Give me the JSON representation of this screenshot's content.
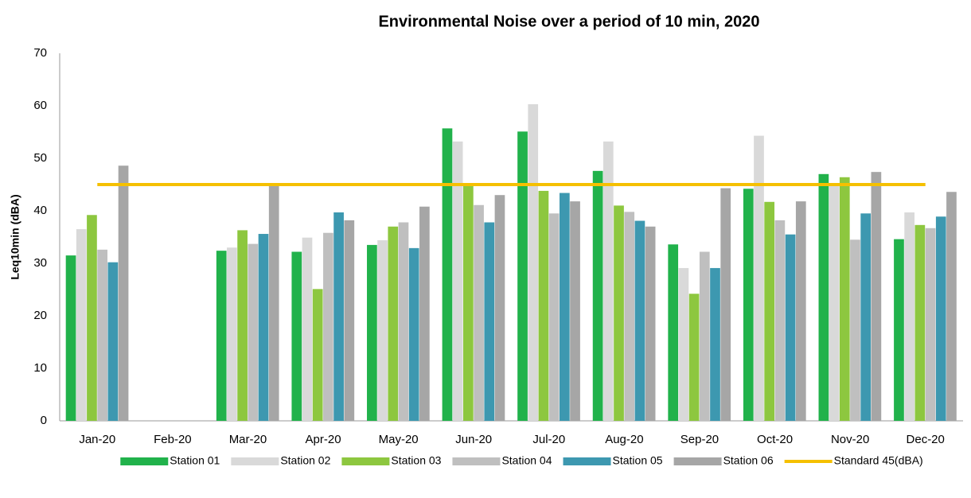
{
  "chart_data": {
    "type": "bar",
    "title": "Environmental Noise over a period of 10 min, 2020",
    "y_label": "Leq10min (dBA)",
    "categories": [
      "Jan-20",
      "Feb-20",
      "Mar-20",
      "Apr-20",
      "May-20",
      "Jun-20",
      "Jul-20",
      "Aug-20",
      "Sep-20",
      "Oct-20",
      "Nov-20",
      "Dec-20"
    ],
    "series": [
      {
        "name": "Station 01",
        "color": "#21b24b",
        "values": [
          31.5,
          null,
          32.4,
          32.2,
          33.5,
          55.7,
          55.1,
          47.6,
          33.6,
          44.2,
          47,
          34.6
        ]
      },
      {
        "name": "Station 02",
        "color": "#d9d9d9",
        "values": [
          36.5,
          null,
          33,
          34.9,
          34.4,
          53.2,
          60.3,
          53.2,
          29.1,
          54.3,
          45,
          39.7
        ]
      },
      {
        "name": "Station 03",
        "color": "#8dc73f",
        "values": [
          39.2,
          null,
          36.3,
          25.1,
          37,
          44.8,
          43.8,
          41,
          24.2,
          41.7,
          46.4,
          37.3
        ]
      },
      {
        "name": "Station 04",
        "color": "#bfbfbf",
        "values": [
          32.6,
          null,
          33.7,
          35.8,
          37.8,
          41.1,
          39.5,
          39.8,
          32.2,
          38.2,
          34.5,
          36.7
        ]
      },
      {
        "name": "Station 05",
        "color": "#3d98b0",
        "values": [
          30.2,
          null,
          35.6,
          39.7,
          32.9,
          37.8,
          43.4,
          38.1,
          29.1,
          35.5,
          39.5,
          38.9
        ]
      },
      {
        "name": "Station 06",
        "color": "#a6a6a6",
        "values": [
          48.6,
          null,
          44.8,
          38.2,
          40.8,
          43,
          41.8,
          37,
          44.3,
          41.8,
          47.4,
          43.6
        ]
      },
      {
        "name": "Standard 45(dBA)",
        "color": "#f5c000",
        "type": "line",
        "values": [
          45,
          45,
          45,
          45,
          45,
          45,
          45,
          45,
          45,
          45,
          45,
          45
        ]
      }
    ],
    "ylim": [
      0,
      70
    ],
    "yticks": [
      0,
      10,
      20,
      30,
      40,
      50,
      60,
      70
    ],
    "grid": false,
    "legend": "bottom"
  }
}
